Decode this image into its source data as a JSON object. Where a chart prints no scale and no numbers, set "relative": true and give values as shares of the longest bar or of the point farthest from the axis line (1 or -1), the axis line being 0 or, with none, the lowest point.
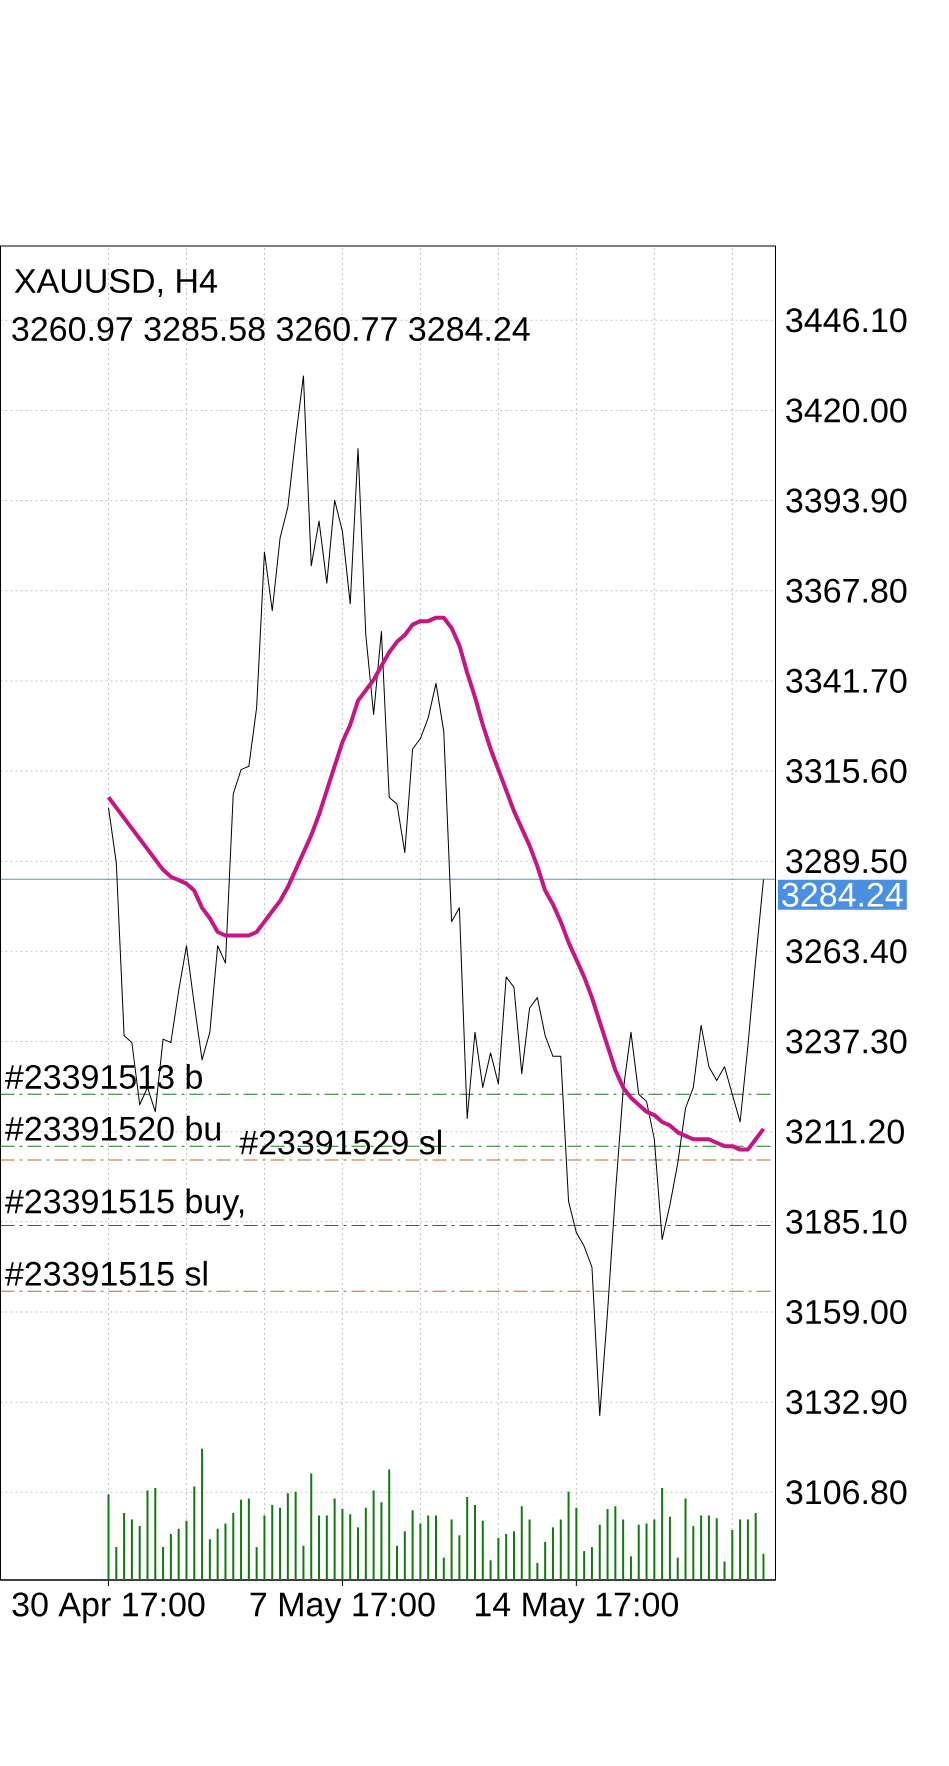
{
  "chart_data": [
    {
      "type": "line",
      "title": "XAUUSD, H4",
      "subtitle": "3260.97 3285.58 3260.77 3284.24",
      "categories": [
        "30 Apr 17:00",
        null,
        null,
        null,
        null,
        null,
        null,
        null,
        null,
        null,
        null,
        null,
        null,
        null,
        null,
        null,
        null,
        null,
        null,
        null,
        null,
        null,
        null,
        null,
        null,
        null,
        null,
        null,
        null,
        null,
        "7 May 17:00",
        null,
        null,
        null,
        null,
        null,
        null,
        null,
        null,
        null,
        null,
        null,
        null,
        null,
        null,
        null,
        null,
        null,
        null,
        null,
        null,
        null,
        null,
        null,
        null,
        null,
        null,
        null,
        null,
        null,
        "14 May 17:00",
        null,
        null,
        null,
        null,
        null,
        null,
        null,
        null,
        null,
        null,
        null,
        null,
        null,
        null,
        null,
        null,
        null,
        null,
        null,
        null,
        null,
        null,
        null,
        null
      ],
      "series": [
        {
          "color": "#000000",
          "values": [
            3305,
            3289,
            3239,
            3237,
            3219,
            3224,
            3217,
            3238,
            3237,
            3252,
            3265,
            3248,
            3232,
            3240,
            3265,
            3260,
            3309,
            3316,
            3317,
            3334,
            3379,
            3362,
            3383,
            3392,
            3412,
            3430,
            3375,
            3388,
            3370,
            3394,
            3385,
            3364,
            3409,
            3355,
            3332,
            3356,
            3308,
            3306,
            3292,
            3322,
            3325,
            3331,
            3341,
            3327,
            3272,
            3276,
            3215,
            3240,
            3224,
            3234,
            3225,
            3256,
            3253,
            3228,
            3247,
            3250,
            3239,
            3233,
            3233,
            3191,
            3182,
            3178,
            3172,
            3129,
            3159,
            3193,
            3223,
            3240,
            3222,
            3220,
            3209,
            3180,
            3190,
            3202,
            3218,
            3224,
            3242,
            3230,
            3226,
            3230,
            3222,
            3214,
            3236,
            3261,
            3284.24
          ]
        },
        {
          "color": "#c71585",
          "values": [
            3308,
            3305,
            3302,
            3299,
            3296,
            3293,
            3290,
            3287,
            3285,
            3284,
            3283,
            3281,
            3276,
            3273,
            3269,
            3268,
            3268,
            3268,
            3268,
            3269,
            3272,
            3275,
            3278,
            3282,
            3287,
            3292,
            3297,
            3303,
            3310,
            3317,
            3324,
            3329,
            3336,
            3339,
            3342,
            3346,
            3350,
            3353,
            3355,
            3358,
            3359,
            3359,
            3360,
            3360,
            3357,
            3352,
            3344,
            3337,
            3329,
            3322,
            3316,
            3310,
            3304,
            3299,
            3294,
            3288,
            3281,
            3277,
            3272,
            3266,
            3261,
            3256,
            3250,
            3243,
            3236,
            3229,
            3224,
            3221,
            3219,
            3217,
            3216,
            3214,
            3213,
            3211,
            3210,
            3209,
            3209,
            3209,
            3208,
            3207,
            3207,
            3206,
            3206,
            3209,
            3212
          ]
        }
      ],
      "ylim": [
        3081.4,
        3467.6
      ],
      "yticks": [
        {
          "value": 3106.8,
          "label": "3106.80"
        },
        {
          "value": 3132.9,
          "label": "3132.90"
        },
        {
          "value": 3159.0,
          "label": "3159.00"
        },
        {
          "value": 3185.1,
          "label": "3185.10"
        },
        {
          "value": 3211.2,
          "label": "3211.20"
        },
        {
          "value": 3237.3,
          "label": "3237.30"
        },
        {
          "value": 3263.4,
          "label": "3263.40"
        },
        {
          "value": 3289.5,
          "label": "3289.50"
        },
        {
          "value": 3315.6,
          "label": "3315.60"
        },
        {
          "value": 3341.7,
          "label": "3341.70"
        },
        {
          "value": 3367.8,
          "label": "3367.80"
        },
        {
          "value": 3393.9,
          "label": "3393.90"
        },
        {
          "value": 3420.0,
          "label": "3420.00"
        },
        {
          "value": 3446.1,
          "label": "3446.10"
        }
      ],
      "grid": true,
      "ref_lines": [
        {
          "axis": "y",
          "value": 3284.24,
          "label": "3284.24",
          "color": "#4a90e2",
          "line_style": "solid"
        },
        {
          "axis": "y",
          "value": 3222,
          "label": "#23391513 b",
          "color": "#1b7a1b",
          "line_style": "dashdot"
        },
        {
          "axis": "y",
          "value": 3207,
          "label": "#23391520 bu",
          "color": "#1b7a1b",
          "line_style": "dashdot"
        },
        {
          "axis": "y",
          "value": 3203,
          "label": "#23391529 sl",
          "color": "#d2601a",
          "line_style": "dashdot"
        },
        {
          "axis": "y",
          "value": 3184,
          "label": "#23391515 buy,",
          "color": "#1b7a1b",
          "line_style": "dashdot"
        },
        {
          "axis": "y",
          "value": 3165,
          "label": "#23391515 sl",
          "color": "#d2601a",
          "line_style": "dashdot"
        }
      ]
    },
    {
      "type": "bar",
      "relative": true,
      "categories": [
        null,
        null,
        null,
        null,
        null,
        null,
        null,
        null,
        null,
        null,
        null,
        null,
        null,
        null,
        null,
        null,
        null,
        null,
        null,
        null,
        null,
        null,
        null,
        null,
        null,
        null,
        null,
        null,
        null,
        null,
        null,
        null,
        null,
        null,
        null,
        null,
        null,
        null,
        null,
        null,
        null,
        null,
        null,
        null,
        null,
        null,
        null,
        null,
        null,
        null,
        null,
        null,
        null,
        null,
        null,
        null,
        null,
        null,
        null,
        null,
        null,
        null,
        null,
        null,
        null,
        null,
        null,
        null,
        null,
        null,
        null,
        null,
        null,
        null,
        null,
        null,
        null,
        null,
        null,
        null,
        null,
        null,
        null,
        null,
        null
      ],
      "values": [
        0.65,
        0.25,
        0.51,
        0.46,
        0.41,
        0.68,
        0.7,
        0.25,
        0.35,
        0.39,
        0.45,
        0.71,
        1,
        0.31,
        0.39,
        0.43,
        0.51,
        0.61,
        0.62,
        0.25,
        0.49,
        0.57,
        0.55,
        0.66,
        0.67,
        0.26,
        0.81,
        0.49,
        0.49,
        0.62,
        0.54,
        0.5,
        0.4,
        0.55,
        0.68,
        0.59,
        0.84,
        0.26,
        0.37,
        0.53,
        0.43,
        0.49,
        0.49,
        0.17,
        0.46,
        0.34,
        0.63,
        0.57,
        0.45,
        0.15,
        0.32,
        0.35,
        0.37,
        0.56,
        0.46,
        0.13,
        0.29,
        0.4,
        0.46,
        0.67,
        0.55,
        0.22,
        0.25,
        0.42,
        0.54,
        0.56,
        0.46,
        0.18,
        0.42,
        0.43,
        0.46,
        0.7,
        0.48,
        0.17,
        0.62,
        0.41,
        0.49,
        0.49,
        0.47,
        0.14,
        0.38,
        0.46,
        0.46,
        0.51,
        0.2
      ],
      "color": "#0f7a0f"
    }
  ]
}
